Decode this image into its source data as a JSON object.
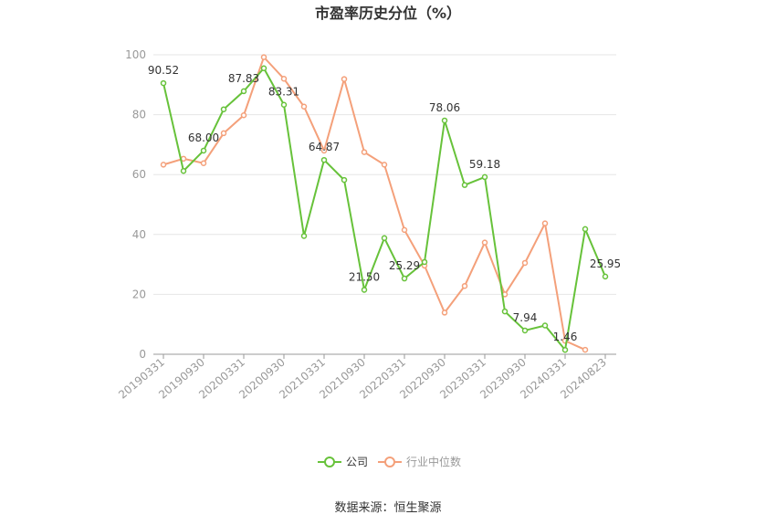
{
  "chart_data": {
    "type": "line",
    "title": "市盈率历史分位（%）",
    "ylim": [
      0,
      100
    ],
    "yticks": [
      0,
      20,
      40,
      60,
      80,
      100
    ],
    "grid": true,
    "legend_position": "bottom-center",
    "x": [
      "20190331",
      "20190630",
      "20190930",
      "20191231",
      "20200331",
      "20200630",
      "20200930",
      "20201231",
      "20210331",
      "20210630",
      "20210930",
      "20211231",
      "20220331",
      "20220630",
      "20220930",
      "20221231",
      "20230331",
      "20230630",
      "20230930",
      "20231231",
      "20240331",
      "20240630",
      "20240823"
    ],
    "xtick_labels": [
      "20190331",
      "20190930",
      "20200331",
      "20200930",
      "20210331",
      "20210930",
      "20220331",
      "20220930",
      "20230331",
      "20230930",
      "20240331",
      "20240823"
    ],
    "series": [
      {
        "name": "公司",
        "color": "#67c23a",
        "values": [
          90.52,
          61.2,
          68.0,
          81.8,
          87.83,
          95.5,
          83.31,
          39.5,
          64.87,
          58.2,
          21.5,
          38.8,
          25.29,
          30.8,
          78.06,
          56.5,
          59.18,
          14.3,
          7.94,
          9.6,
          1.46,
          41.8,
          25.95
        ],
        "labels": [
          "90.52",
          null,
          "68.00",
          null,
          "87.83",
          null,
          "83.31",
          null,
          "64.87",
          null,
          "21.50",
          null,
          "25.29",
          null,
          "78.06",
          null,
          "59.18",
          null,
          "7.94",
          null,
          "1.46",
          null,
          "25.95"
        ]
      },
      {
        "name": "行业中位数",
        "color": "#f4a07a",
        "values": [
          63.3,
          65.3,
          63.8,
          73.8,
          79.8,
          99.2,
          92.0,
          82.7,
          68.0,
          91.9,
          67.5,
          63.3,
          41.5,
          29.6,
          13.9,
          22.8,
          37.3,
          20.0,
          30.5,
          43.7,
          4.5,
          1.5,
          null
        ]
      }
    ]
  },
  "source": "数据来源：恒生聚源"
}
